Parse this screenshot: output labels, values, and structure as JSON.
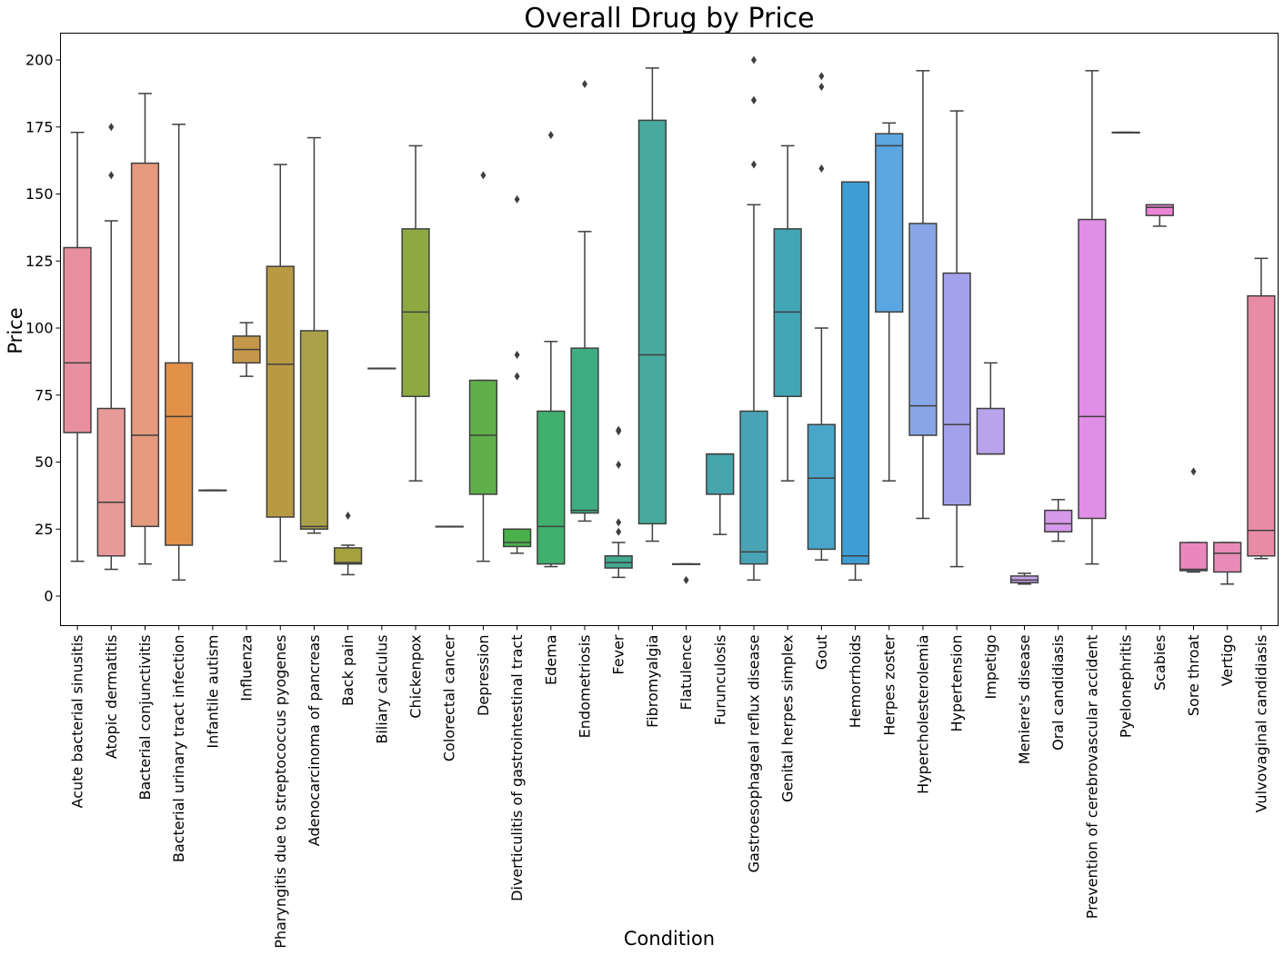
{
  "chart_data": {
    "type": "box",
    "title": "Overall Drug by Price",
    "xlabel": "Condition",
    "ylabel": "Price",
    "ylim": [
      -11,
      210
    ],
    "yticks": [
      0,
      25,
      50,
      75,
      100,
      125,
      150,
      175,
      200
    ],
    "grid": false,
    "boxes": [
      {
        "category": "Acute bacterial sinusitis",
        "color": "#e8909f",
        "whisker_low": 13,
        "q1": 61,
        "median": 87,
        "q3": 130,
        "whisker_high": 173,
        "outliers": []
      },
      {
        "category": "Atopic dermatitis",
        "color": "#e89a98",
        "whisker_low": 10,
        "q1": 15,
        "median": 35,
        "q3": 70,
        "whisker_high": 140,
        "outliers": [
          157,
          175
        ]
      },
      {
        "category": "Bacterial conjunctivitis",
        "color": "#e59a7e",
        "whisker_low": 12,
        "q1": 26,
        "median": 60,
        "q3": 161.5,
        "whisker_high": 187.5,
        "outliers": []
      },
      {
        "category": "Bacterial urinary tract infection",
        "color": "#e29149",
        "whisker_low": 6,
        "q1": 19,
        "median": 67,
        "q3": 87,
        "whisker_high": 176,
        "outliers": []
      },
      {
        "category": "Infantile autism",
        "color": "#d4993d",
        "whisker_low": 39.5,
        "q1": 39.5,
        "median": 39.5,
        "q3": 39.5,
        "whisker_high": 39.5,
        "outliers": []
      },
      {
        "category": "Influenza",
        "color": "#c5974b",
        "whisker_low": 82,
        "q1": 87,
        "median": 92,
        "q3": 97,
        "whisker_high": 102,
        "outliers": []
      },
      {
        "category": "Pharyngitis due to streptococcus pyogenes",
        "color": "#b99a43",
        "whisker_low": 13,
        "q1": 29.5,
        "median": 86.5,
        "q3": 123,
        "whisker_high": 161,
        "outliers": []
      },
      {
        "category": "Adenocarcinoma of pancreas",
        "color": "#aaa14a",
        "whisker_low": 23.5,
        "q1": 25,
        "median": 26,
        "q3": 99,
        "whisker_high": 171,
        "outliers": []
      },
      {
        "category": "Back pain",
        "color": "#a5a23f",
        "whisker_low": 8,
        "q1": 12,
        "median": 12.5,
        "q3": 18,
        "whisker_high": 19,
        "outliers": [
          30
        ]
      },
      {
        "category": "Biliary calculus",
        "color": "#97a53f",
        "whisker_low": 85,
        "q1": 85,
        "median": 85,
        "q3": 85,
        "whisker_high": 85,
        "outliers": []
      },
      {
        "category": "Chickenpox",
        "color": "#8daa42",
        "whisker_low": 43,
        "q1": 74.5,
        "median": 106,
        "q3": 137,
        "whisker_high": 168,
        "outliers": []
      },
      {
        "category": "Colorectal cancer",
        "color": "#78ad42",
        "whisker_low": 26,
        "q1": 26,
        "median": 26,
        "q3": 26,
        "whisker_high": 26,
        "outliers": []
      },
      {
        "category": "Depression",
        "color": "#5fb04a",
        "whisker_low": 13,
        "q1": 38,
        "median": 60,
        "q3": 80.5,
        "whisker_high": 80.5,
        "outliers": [
          157
        ]
      },
      {
        "category": "Diverticulitis of gastrointestinal tract",
        "color": "#49b04a",
        "whisker_low": 16,
        "q1": 18.5,
        "median": 20,
        "q3": 25,
        "whisker_high": 25,
        "outliers": [
          82,
          90,
          148
        ]
      },
      {
        "category": "Edema",
        "color": "#40b06f",
        "whisker_low": 11,
        "q1": 12,
        "median": 26,
        "q3": 69,
        "whisker_high": 95,
        "outliers": [
          172
        ]
      },
      {
        "category": "Endometriosis",
        "color": "#3fad82",
        "whisker_low": 28,
        "q1": 31,
        "median": 32,
        "q3": 92.5,
        "whisker_high": 136,
        "outliers": [
          191
        ]
      },
      {
        "category": "Fever",
        "color": "#41aa8f",
        "whisker_low": 7,
        "q1": 10.5,
        "median": 12.5,
        "q3": 15,
        "whisker_high": 20,
        "outliers": [
          24,
          27.5,
          49,
          61.5,
          62
        ]
      },
      {
        "category": "Fibromyalgia",
        "color": "#47aa9c",
        "whisker_low": 20.5,
        "q1": 27,
        "median": 90,
        "q3": 177.5,
        "whisker_high": 197,
        "outliers": []
      },
      {
        "category": "Flatulence",
        "color": "#45a8a5",
        "whisker_low": 12,
        "q1": 12,
        "median": 12,
        "q3": 12,
        "whisker_high": 12,
        "outliers": [
          6
        ]
      },
      {
        "category": "Furunculosis",
        "color": "#46a5ad",
        "whisker_low": 23,
        "q1": 38,
        "median": 53,
        "q3": 53,
        "whisker_high": 53,
        "outliers": []
      },
      {
        "category": "Gastroesophageal reflux disease",
        "color": "#48a4b5",
        "whisker_low": 6,
        "q1": 12,
        "median": 16.5,
        "q3": 69,
        "whisker_high": 146,
        "outliers": [
          161,
          185,
          185,
          200
        ]
      },
      {
        "category": "Genital herpes simplex",
        "color": "#42a6b4",
        "whisker_low": 43,
        "q1": 74.5,
        "median": 106,
        "q3": 137,
        "whisker_high": 168,
        "outliers": []
      },
      {
        "category": "Gout",
        "color": "#4aa6c8",
        "whisker_low": 13.5,
        "q1": 17.5,
        "median": 44,
        "q3": 64,
        "whisker_high": 100,
        "outliers": [
          159.5,
          190,
          194
        ]
      },
      {
        "category": "Hemorrhoids",
        "color": "#3d9ed6",
        "whisker_low": 6,
        "q1": 12,
        "median": 15,
        "q3": 154.5,
        "whisker_high": 154.5,
        "outliers": []
      },
      {
        "category": "Herpes zoster",
        "color": "#5ba6e0",
        "whisker_low": 43,
        "q1": 106,
        "median": 168,
        "q3": 172.5,
        "whisker_high": 176.5,
        "outliers": []
      },
      {
        "category": "Hypercholesterolemia",
        "color": "#88a6e6",
        "whisker_low": 29,
        "q1": 60,
        "median": 71,
        "q3": 139,
        "whisker_high": 196,
        "outliers": []
      },
      {
        "category": "Hypertension",
        "color": "#a3a1ea",
        "whisker_low": 11,
        "q1": 34,
        "median": 64,
        "q3": 120.5,
        "whisker_high": 181,
        "outliers": []
      },
      {
        "category": "Impetigo",
        "color": "#b9a3ec",
        "whisker_low": 53,
        "q1": 53,
        "median": 53,
        "q3": 70,
        "whisker_high": 87,
        "outliers": []
      },
      {
        "category": "Meniere's disease",
        "color": "#c7a2ea",
        "whisker_low": 4.5,
        "q1": 5,
        "median": 6,
        "q3": 7.5,
        "whisker_high": 8.5,
        "outliers": []
      },
      {
        "category": "Oral candidiasis",
        "color": "#d499e8",
        "whisker_low": 20.5,
        "q1": 24,
        "median": 27,
        "q3": 32,
        "whisker_high": 36,
        "outliers": []
      },
      {
        "category": "Prevention of cerebrovascular accident",
        "color": "#e08ee6",
        "whisker_low": 12,
        "q1": 29,
        "median": 67,
        "q3": 140.5,
        "whisker_high": 196,
        "outliers": []
      },
      {
        "category": "Pyelonephritis",
        "color": "#e58de4",
        "whisker_low": 173,
        "q1": 173,
        "median": 173,
        "q3": 173,
        "whisker_high": 173,
        "outliers": []
      },
      {
        "category": "Scabies",
        "color": "#eb84d6",
        "whisker_low": 138,
        "q1": 142,
        "median": 145,
        "q3": 146,
        "whisker_high": 146,
        "outliers": []
      },
      {
        "category": "Sore throat",
        "color": "#ea88be",
        "whisker_low": 9,
        "q1": 9.5,
        "median": 10,
        "q3": 20,
        "whisker_high": 20,
        "outliers": [
          46.5
        ]
      },
      {
        "category": "Vertigo",
        "color": "#e98bb8",
        "whisker_low": 4.5,
        "q1": 9,
        "median": 16,
        "q3": 20,
        "whisker_high": 20,
        "outliers": []
      },
      {
        "category": "Vulvovaginal candidiasis",
        "color": "#e88ba5",
        "whisker_low": 14,
        "q1": 15,
        "median": 24.5,
        "q3": 112,
        "whisker_high": 126,
        "outliers": []
      }
    ]
  }
}
